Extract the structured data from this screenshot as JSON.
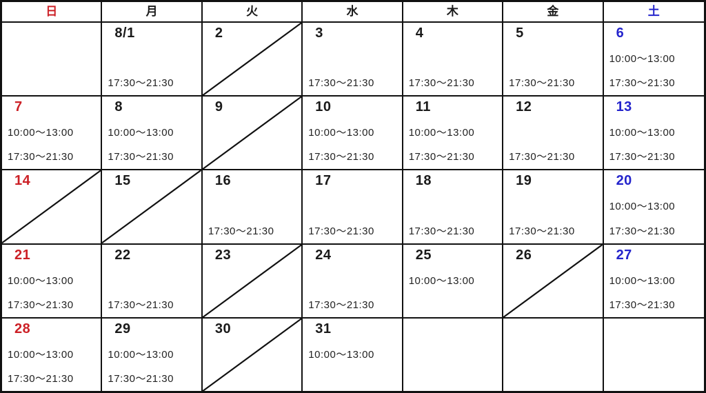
{
  "calendar": {
    "title": "august-business-hours-calendar",
    "month_label": "8",
    "weekdays": [
      {
        "key": "sun",
        "label": "日"
      },
      {
        "key": "mon",
        "label": "月"
      },
      {
        "key": "tue",
        "label": "火"
      },
      {
        "key": "wed",
        "label": "水"
      },
      {
        "key": "thu",
        "label": "木"
      },
      {
        "key": "fri",
        "label": "金"
      },
      {
        "key": "sat",
        "label": "土"
      }
    ],
    "colors": {
      "sunday_text": "#cc2026",
      "saturday_text": "#2424cc",
      "grid": "#111111",
      "text": "#1a1a1a",
      "background": "#ffffff"
    },
    "hours": {
      "morning": "10:00〜13:00",
      "evening": "17:30〜21:30"
    },
    "weeks": [
      [
        {
          "date": "",
          "morning": "",
          "evening": "",
          "closed": false
        },
        {
          "date": "8/1",
          "morning": "",
          "evening": "17:30〜21:30",
          "closed": false
        },
        {
          "date": "2",
          "morning": "",
          "evening": "",
          "closed": true
        },
        {
          "date": "3",
          "morning": "",
          "evening": "17:30〜21:30",
          "closed": false
        },
        {
          "date": "4",
          "morning": "",
          "evening": "17:30〜21:30",
          "closed": false
        },
        {
          "date": "5",
          "morning": "",
          "evening": "17:30〜21:30",
          "closed": false
        },
        {
          "date": "6",
          "morning": "10:00〜13:00",
          "evening": "17:30〜21:30",
          "closed": false
        }
      ],
      [
        {
          "date": "7",
          "morning": "10:00〜13:00",
          "evening": "17:30〜21:30",
          "closed": false
        },
        {
          "date": "8",
          "morning": "10:00〜13:00",
          "evening": "17:30〜21:30",
          "closed": false
        },
        {
          "date": "9",
          "morning": "",
          "evening": "",
          "closed": true
        },
        {
          "date": "10",
          "morning": "10:00〜13:00",
          "evening": "17:30〜21:30",
          "closed": false
        },
        {
          "date": "11",
          "morning": "10:00〜13:00",
          "evening": "17:30〜21:30",
          "closed": false
        },
        {
          "date": "12",
          "morning": "",
          "evening": "17:30〜21:30",
          "closed": false
        },
        {
          "date": "13",
          "morning": "10:00〜13:00",
          "evening": "17:30〜21:30",
          "closed": false
        }
      ],
      [
        {
          "date": "14",
          "morning": "",
          "evening": "",
          "closed": true
        },
        {
          "date": "15",
          "morning": "",
          "evening": "",
          "closed": true
        },
        {
          "date": "16",
          "morning": "",
          "evening": "17:30〜21:30",
          "closed": false
        },
        {
          "date": "17",
          "morning": "",
          "evening": "17:30〜21:30",
          "closed": false
        },
        {
          "date": "18",
          "morning": "",
          "evening": "17:30〜21:30",
          "closed": false
        },
        {
          "date": "19",
          "morning": "",
          "evening": "17:30〜21:30",
          "closed": false
        },
        {
          "date": "20",
          "morning": "10:00〜13:00",
          "evening": "17:30〜21:30",
          "closed": false
        }
      ],
      [
        {
          "date": "21",
          "morning": "10:00〜13:00",
          "evening": "17:30〜21:30",
          "closed": false
        },
        {
          "date": "22",
          "morning": "",
          "evening": "17:30〜21:30",
          "closed": false
        },
        {
          "date": "23",
          "morning": "",
          "evening": "",
          "closed": true
        },
        {
          "date": "24",
          "morning": "",
          "evening": "17:30〜21:30",
          "closed": false
        },
        {
          "date": "25",
          "morning": "10:00〜13:00",
          "evening": "",
          "closed": false
        },
        {
          "date": "26",
          "morning": "",
          "evening": "",
          "closed": true
        },
        {
          "date": "27",
          "morning": "10:00〜13:00",
          "evening": "17:30〜21:30",
          "closed": false
        }
      ],
      [
        {
          "date": "28",
          "morning": "10:00〜13:00",
          "evening": "17:30〜21:30",
          "closed": false
        },
        {
          "date": "29",
          "morning": "10:00〜13:00",
          "evening": "17:30〜21:30",
          "closed": false
        },
        {
          "date": "30",
          "morning": "",
          "evening": "",
          "closed": true
        },
        {
          "date": "31",
          "morning": "10:00〜13:00",
          "evening": "",
          "closed": false
        },
        {
          "date": "",
          "morning": "",
          "evening": "",
          "closed": false
        },
        {
          "date": "",
          "morning": "",
          "evening": "",
          "closed": false
        },
        {
          "date": "",
          "morning": "",
          "evening": "",
          "closed": false
        }
      ]
    ]
  }
}
